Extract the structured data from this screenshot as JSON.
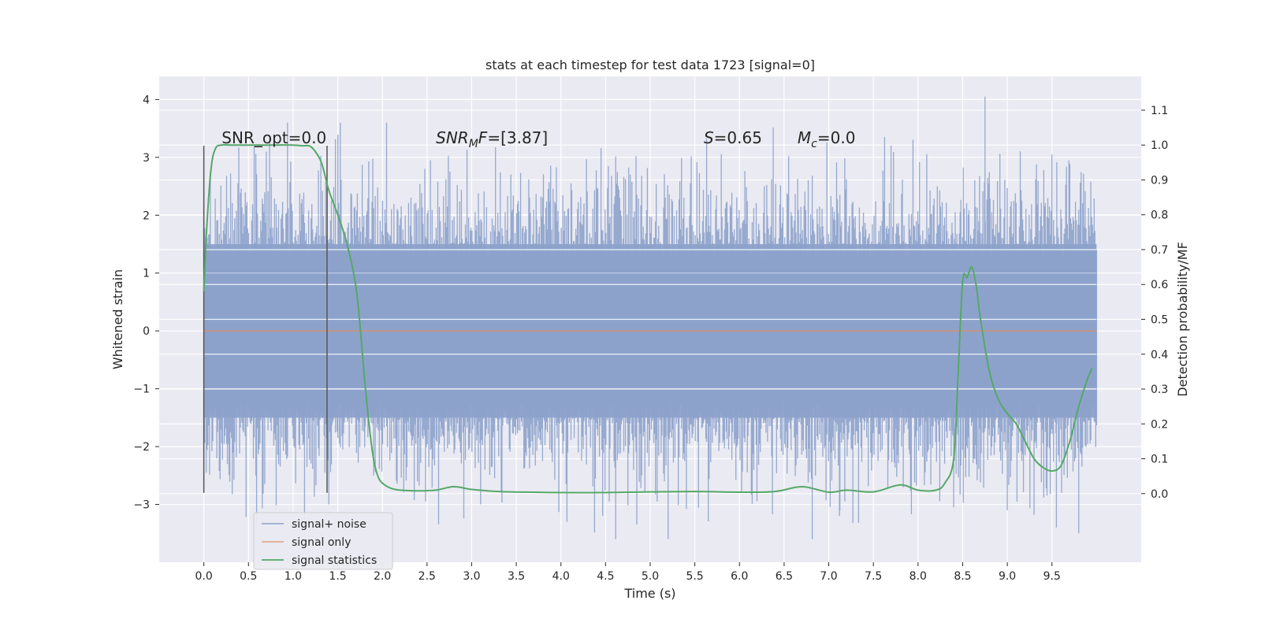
{
  "chart_data": {
    "type": "line",
    "title": "stats at each timestep for test data 1723 [signal=0]",
    "xlabel": "Time (s)",
    "ylabel": "Whitened strain",
    "y2label": "Detection probability/MF",
    "xlim": [
      -0.5,
      10.5
    ],
    "ylim": [
      -4.0,
      4.4
    ],
    "y2lim": [
      -0.197,
      1.197
    ],
    "xticks": [
      "0.0",
      "0.5",
      "1.0",
      "1.5",
      "2.0",
      "2.5",
      "3.0",
      "3.5",
      "4.0",
      "4.5",
      "5.0",
      "5.5",
      "6.0",
      "6.5",
      "7.0",
      "7.5",
      "8.0",
      "8.5",
      "9.0",
      "9.5"
    ],
    "yticks": [
      "4",
      "3",
      "2",
      "1",
      "0",
      "−1",
      "−2",
      "−3"
    ],
    "y2ticks": [
      "1.1",
      "1.0",
      "0.9",
      "0.8",
      "0.7",
      "0.6",
      "0.5",
      "0.4",
      "0.3",
      "0.2",
      "0.1",
      "0.0"
    ],
    "grid": true,
    "legend_position": "lower-left",
    "annotations": [
      {
        "text": "SNR_opt=0.0",
        "x": 0.2,
        "y": 3.2
      },
      {
        "text": "SNR_MF=[3.87]",
        "x": 2.6,
        "y": 3.2
      },
      {
        "text": "S=0.65",
        "x": 5.6,
        "y": 3.2
      },
      {
        "text": "M_c=0.0",
        "x": 6.65,
        "y": 3.2
      }
    ],
    "vertical_lines": [
      0.0,
      1.38
    ],
    "vertical_lines_range": [
      -2.8,
      3.2
    ],
    "noise": {
      "x_range": [
        0.0,
        10.0
      ],
      "typical_band": [
        -1.5,
        1.5
      ],
      "peaks": [
        {
          "x": 8.75,
          "y": 4.05
        },
        {
          "x": 9.5,
          "y": 3.05
        },
        {
          "x": 0.7,
          "y": 3.1
        },
        {
          "x": 5.2,
          "y": -3.6
        },
        {
          "x": 9.55,
          "y": -3.4
        },
        {
          "x": 9.8,
          "y": -3.5
        },
        {
          "x": 7.12,
          "y": -3.2
        },
        {
          "x": 8.4,
          "y": -3.05
        },
        {
          "x": 1.4,
          "y": -3.0
        },
        {
          "x": 3.1,
          "y": -3.0
        },
        {
          "x": 9.0,
          "y": -3.1
        }
      ]
    },
    "series": [
      {
        "name": "signal+ noise",
        "color": "#8da2cb",
        "style": "noise"
      },
      {
        "name": "signal only",
        "color": "#dd8452",
        "style": "line",
        "x": [
          0.0,
          10.0
        ],
        "y": [
          0.0,
          0.0
        ]
      },
      {
        "name": "signal statistics",
        "color": "#55a868",
        "style": "line",
        "axis": "right",
        "x": [
          0.0,
          0.03,
          0.08,
          0.13,
          0.2,
          0.3,
          0.5,
          0.8,
          1.0,
          1.1,
          1.2,
          1.3,
          1.35,
          1.4,
          1.5,
          1.6,
          1.7,
          1.75,
          1.8,
          1.85,
          1.9,
          1.95,
          2.0,
          2.1,
          2.2,
          2.4,
          2.6,
          2.8,
          3.0,
          3.3,
          3.7,
          4.0,
          4.5,
          5.0,
          5.5,
          6.0,
          6.4,
          6.7,
          7.0,
          7.2,
          7.5,
          7.8,
          8.0,
          8.2,
          8.3,
          8.4,
          8.45,
          8.5,
          8.55,
          8.6,
          8.65,
          8.7,
          8.8,
          8.9,
          9.0,
          9.1,
          9.2,
          9.3,
          9.4,
          9.5,
          9.6,
          9.7,
          9.8,
          9.9,
          9.95
        ],
        "y": [
          0.58,
          0.75,
          0.93,
          0.99,
          1.0,
          1.0,
          1.0,
          1.0,
          1.0,
          0.998,
          0.995,
          0.96,
          0.92,
          0.87,
          0.8,
          0.72,
          0.6,
          0.48,
          0.33,
          0.2,
          0.1,
          0.05,
          0.03,
          0.015,
          0.01,
          0.008,
          0.01,
          0.02,
          0.012,
          0.006,
          0.004,
          0.003,
          0.003,
          0.005,
          0.006,
          0.004,
          0.006,
          0.02,
          0.004,
          0.01,
          0.005,
          0.025,
          0.01,
          0.01,
          0.03,
          0.1,
          0.35,
          0.61,
          0.62,
          0.65,
          0.6,
          0.5,
          0.35,
          0.27,
          0.23,
          0.2,
          0.15,
          0.1,
          0.075,
          0.065,
          0.08,
          0.15,
          0.25,
          0.33,
          0.36
        ]
      }
    ]
  }
}
